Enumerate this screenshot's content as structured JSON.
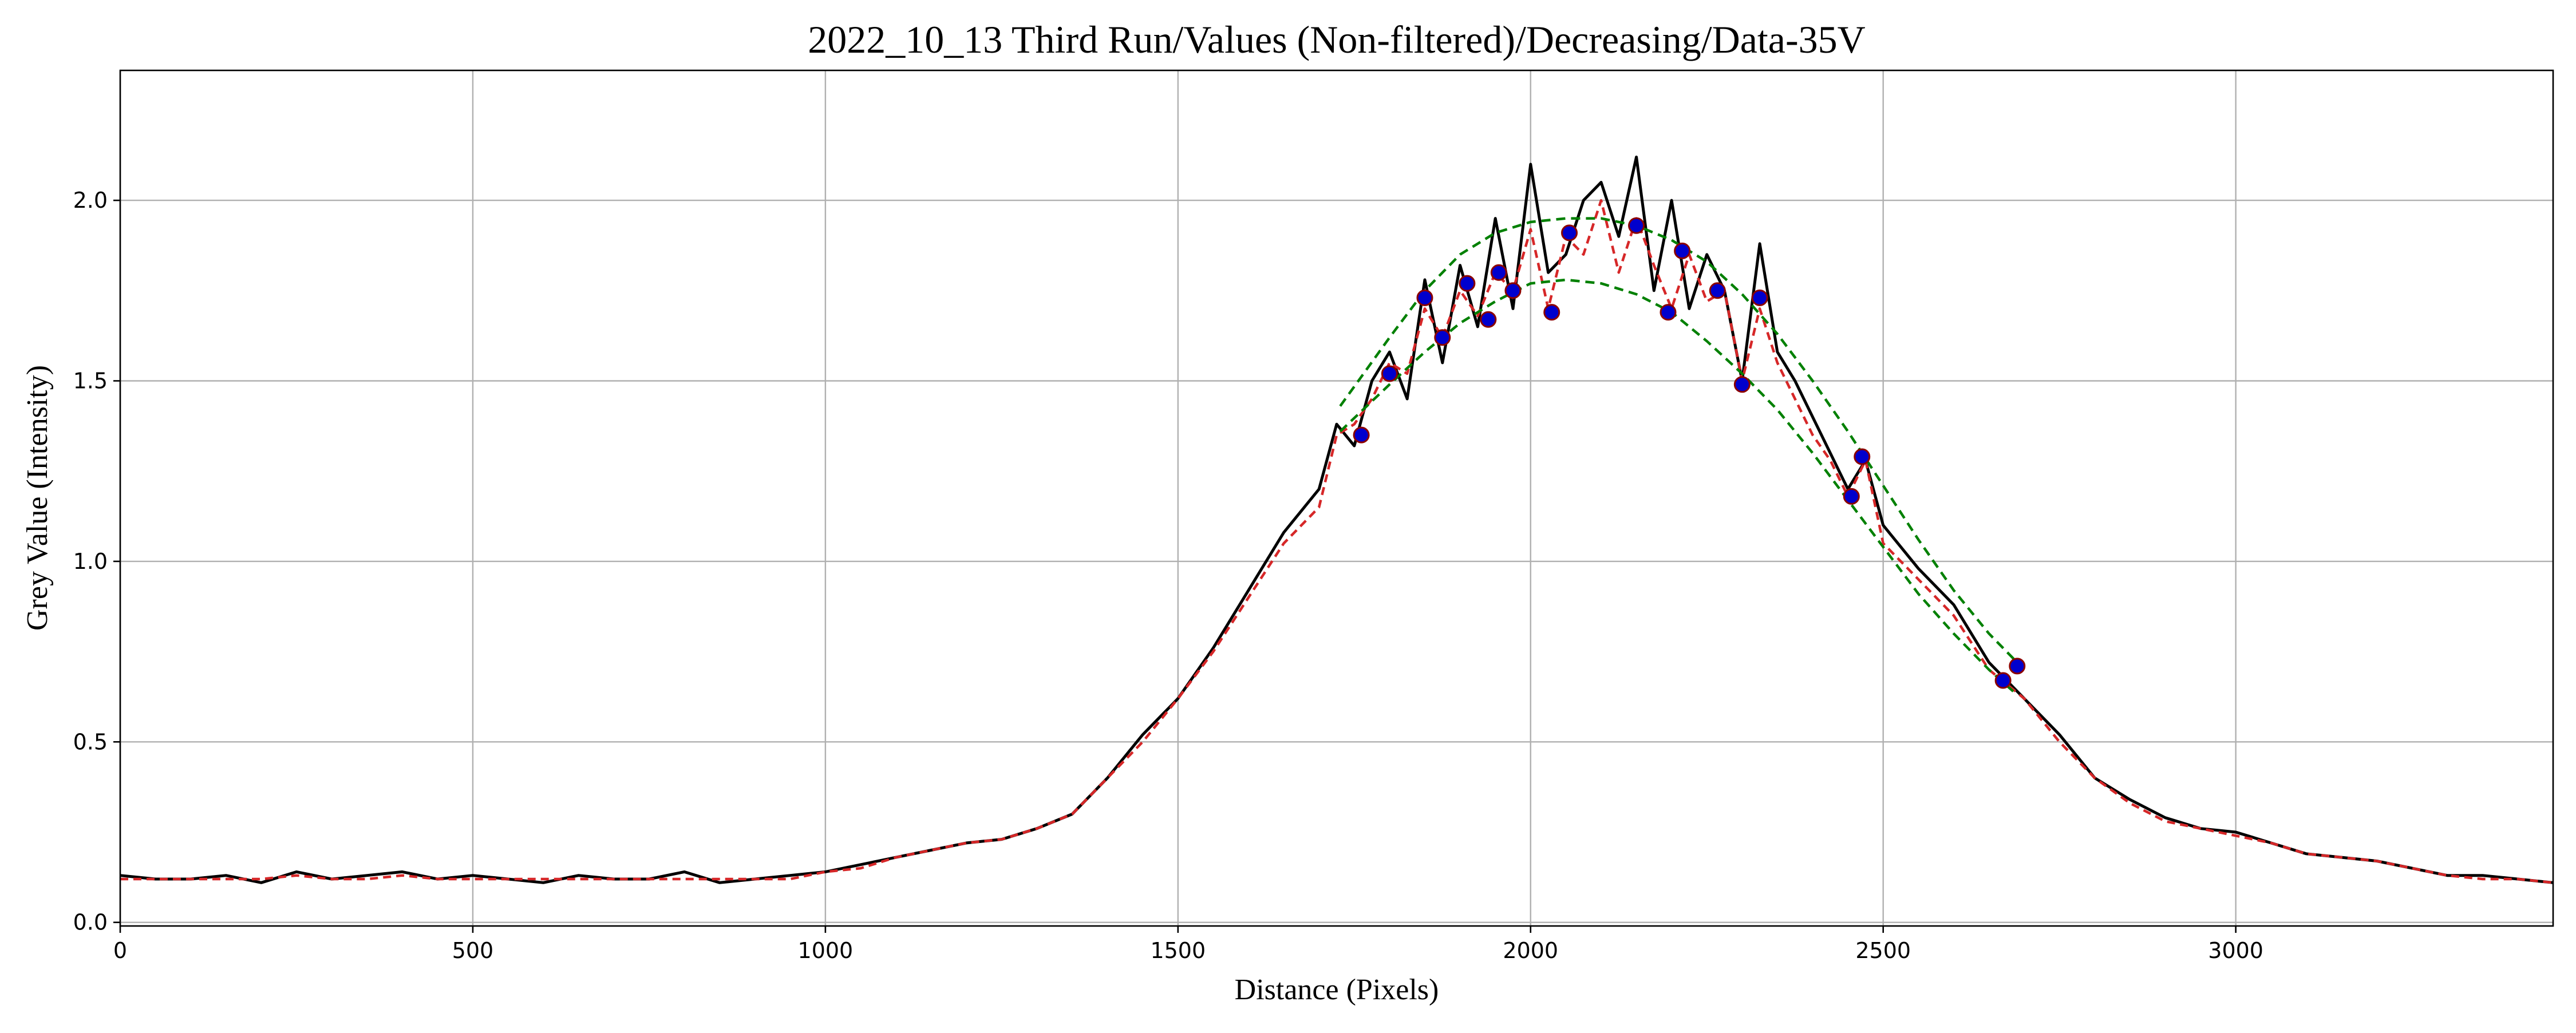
{
  "chart_data": {
    "type": "line",
    "title": "2022_10_13 Third Run/Values (Non-filtered)/Decreasing/Data-35V",
    "xlabel": "Distance (Pixels)",
    "ylabel": "Grey Value (Intensity)",
    "xlim": [
      0,
      3450
    ],
    "ylim": [
      -0.01,
      2.36
    ],
    "x_ticks": [
      0,
      500,
      1000,
      1500,
      2000,
      2500,
      3000
    ],
    "y_ticks": [
      0.0,
      0.5,
      1.0,
      1.5,
      2.0
    ],
    "x_tick_labels": [
      "0",
      "500",
      "1000",
      "1500",
      "2000",
      "2500",
      "3000"
    ],
    "y_tick_labels": [
      "0.0",
      "0.5",
      "1.0",
      "1.5",
      "2.0"
    ],
    "grid": true,
    "series": [
      {
        "role": "raw",
        "style": "solid",
        "color": "#000000",
        "x": [
          0,
          50,
          100,
          150,
          200,
          250,
          300,
          350,
          400,
          450,
          500,
          550,
          600,
          650,
          700,
          750,
          800,
          850,
          900,
          950,
          1000,
          1050,
          1100,
          1150,
          1200,
          1250,
          1300,
          1350,
          1400,
          1450,
          1500,
          1550,
          1600,
          1650,
          1700,
          1725,
          1750,
          1775,
          1800,
          1825,
          1850,
          1875,
          1900,
          1925,
          1950,
          1975,
          2000,
          2025,
          2050,
          2075,
          2100,
          2125,
          2150,
          2175,
          2200,
          2225,
          2250,
          2275,
          2300,
          2325,
          2350,
          2375,
          2400,
          2425,
          2450,
          2475,
          2500,
          2550,
          2600,
          2650,
          2700,
          2750,
          2800,
          2850,
          2900,
          2950,
          3000,
          3050,
          3100,
          3150,
          3200,
          3250,
          3300,
          3350,
          3400,
          3450
        ],
        "y": [
          0.13,
          0.12,
          0.12,
          0.13,
          0.11,
          0.14,
          0.12,
          0.13,
          0.14,
          0.12,
          0.13,
          0.12,
          0.11,
          0.13,
          0.12,
          0.12,
          0.14,
          0.11,
          0.12,
          0.13,
          0.14,
          0.16,
          0.18,
          0.2,
          0.22,
          0.23,
          0.26,
          0.3,
          0.4,
          0.52,
          0.62,
          0.76,
          0.92,
          1.08,
          1.2,
          1.38,
          1.32,
          1.5,
          1.58,
          1.45,
          1.78,
          1.55,
          1.82,
          1.65,
          1.95,
          1.7,
          2.1,
          1.8,
          1.85,
          2.0,
          2.05,
          1.9,
          2.12,
          1.75,
          2.0,
          1.7,
          1.85,
          1.75,
          1.5,
          1.88,
          1.58,
          1.5,
          1.4,
          1.3,
          1.2,
          1.28,
          1.1,
          0.98,
          0.88,
          0.72,
          0.62,
          0.52,
          0.4,
          0.34,
          0.29,
          0.26,
          0.25,
          0.22,
          0.19,
          0.18,
          0.17,
          0.15,
          0.13,
          0.13,
          0.12,
          0.11
        ]
      },
      {
        "role": "smoothed",
        "style": "dashed",
        "color": "#d62728",
        "x": [
          0,
          50,
          100,
          150,
          200,
          250,
          300,
          350,
          400,
          450,
          500,
          550,
          600,
          650,
          700,
          750,
          800,
          850,
          900,
          950,
          1000,
          1050,
          1100,
          1150,
          1200,
          1250,
          1300,
          1350,
          1400,
          1450,
          1500,
          1550,
          1600,
          1650,
          1700,
          1725,
          1750,
          1775,
          1800,
          1825,
          1850,
          1875,
          1900,
          1925,
          1950,
          1975,
          2000,
          2025,
          2050,
          2075,
          2100,
          2125,
          2150,
          2175,
          2200,
          2225,
          2250,
          2275,
          2300,
          2325,
          2350,
          2375,
          2400,
          2425,
          2450,
          2475,
          2500,
          2550,
          2600,
          2650,
          2700,
          2750,
          2800,
          2850,
          2900,
          2950,
          3000,
          3050,
          3100,
          3150,
          3200,
          3250,
          3300,
          3350,
          3400,
          3450
        ],
        "y": [
          0.12,
          0.12,
          0.12,
          0.12,
          0.12,
          0.13,
          0.12,
          0.12,
          0.13,
          0.12,
          0.12,
          0.12,
          0.12,
          0.12,
          0.12,
          0.12,
          0.12,
          0.12,
          0.12,
          0.12,
          0.14,
          0.15,
          0.18,
          0.2,
          0.22,
          0.23,
          0.26,
          0.3,
          0.4,
          0.5,
          0.62,
          0.75,
          0.9,
          1.05,
          1.15,
          1.35,
          1.38,
          1.45,
          1.55,
          1.52,
          1.7,
          1.62,
          1.75,
          1.68,
          1.8,
          1.75,
          1.92,
          1.7,
          1.9,
          1.85,
          2.0,
          1.8,
          1.95,
          1.82,
          1.7,
          1.85,
          1.72,
          1.75,
          1.5,
          1.7,
          1.55,
          1.45,
          1.35,
          1.28,
          1.18,
          1.28,
          1.05,
          0.95,
          0.85,
          0.7,
          0.62,
          0.5,
          0.4,
          0.33,
          0.28,
          0.26,
          0.24,
          0.22,
          0.19,
          0.18,
          0.17,
          0.15,
          0.13,
          0.12,
          0.12,
          0.11
        ]
      },
      {
        "role": "upper-envelope",
        "style": "dashed",
        "color": "#008000",
        "x": [
          1730,
          1800,
          1850,
          1900,
          1950,
          2000,
          2050,
          2100,
          2150,
          2200,
          2250,
          2300,
          2350,
          2400,
          2450,
          2500,
          2550,
          2600,
          2650,
          2690
        ],
        "y": [
          1.43,
          1.62,
          1.75,
          1.85,
          1.91,
          1.94,
          1.95,
          1.95,
          1.93,
          1.89,
          1.83,
          1.74,
          1.63,
          1.5,
          1.36,
          1.21,
          1.06,
          0.92,
          0.8,
          0.72
        ]
      },
      {
        "role": "lower-envelope",
        "style": "dashed",
        "color": "#008000",
        "x": [
          1730,
          1800,
          1850,
          1900,
          1950,
          2000,
          2050,
          2100,
          2150,
          2200,
          2250,
          2300,
          2350,
          2400,
          2450,
          2500,
          2550,
          2600,
          2650,
          2690
        ],
        "y": [
          1.36,
          1.49,
          1.58,
          1.66,
          1.72,
          1.77,
          1.78,
          1.77,
          1.74,
          1.69,
          1.61,
          1.52,
          1.42,
          1.3,
          1.17,
          1.04,
          0.91,
          0.8,
          0.7,
          0.63
        ]
      }
    ],
    "markers": {
      "color": "#0000cd",
      "edge_color": "#8b0000",
      "x": [
        1760,
        1800,
        1850,
        1875,
        1910,
        1940,
        1955,
        1975,
        2030,
        2055,
        2150,
        2195,
        2215,
        2265,
        2300,
        2325,
        2455,
        2470,
        2670,
        2690
      ],
      "y": [
        1.35,
        1.52,
        1.73,
        1.62,
        1.77,
        1.67,
        1.8,
        1.75,
        1.69,
        1.91,
        1.93,
        1.69,
        1.86,
        1.75,
        1.49,
        1.73,
        1.18,
        1.29,
        0.67,
        0.71
      ]
    }
  }
}
